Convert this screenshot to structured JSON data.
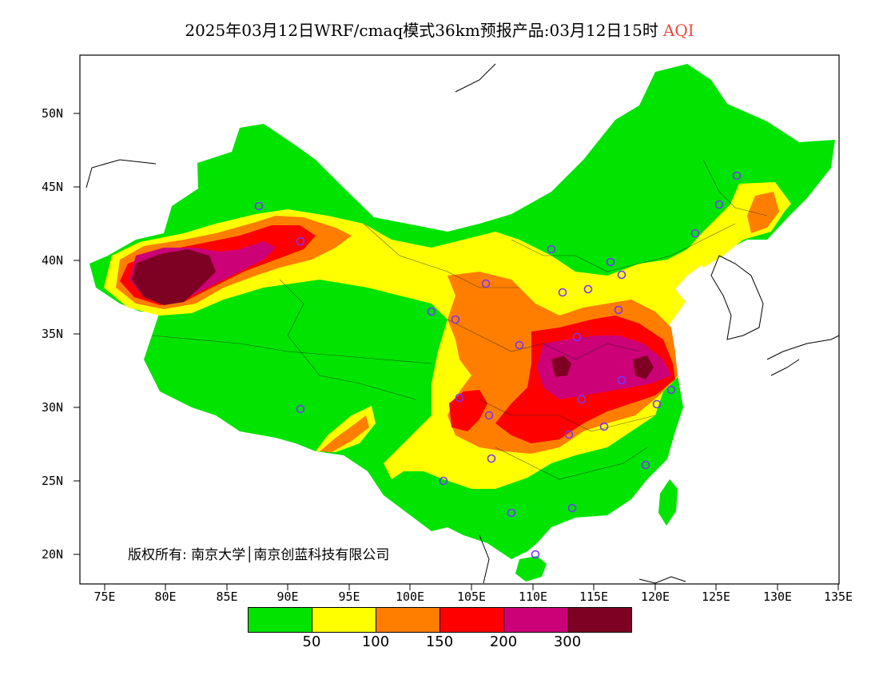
{
  "title": {
    "main": "2025年03月12日WRF/cmaq模式36km预报产品:03月12日15时",
    "variable": "AQI"
  },
  "axes": {
    "y_ticks": [
      "50N",
      "45N",
      "40N",
      "35N",
      "30N",
      "25N",
      "20N"
    ],
    "x_ticks": [
      "75E",
      "80E",
      "85E",
      "90E",
      "95E",
      "100E",
      "105E",
      "110E",
      "115E",
      "120E",
      "125E",
      "130E",
      "135E"
    ]
  },
  "copyright": "版权所有: 南京大学│南京创蓝科技有限公司",
  "legend": {
    "colors": [
      "#00e400",
      "#ffff00",
      "#ff7e00",
      "#ff0000",
      "#cc0077",
      "#7e0023"
    ],
    "labels": [
      "50",
      "100",
      "150",
      "200",
      "300"
    ]
  },
  "stations_icon": "circle-marker"
}
